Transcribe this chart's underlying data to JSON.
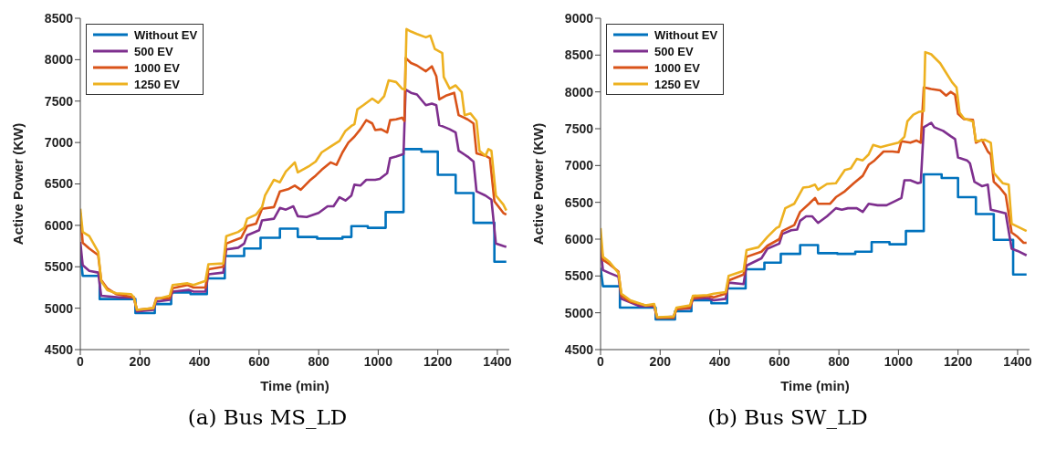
{
  "chart_data": [
    {
      "type": "line",
      "title": "(a) Bus MS_LD",
      "xlabel": "Time (min)",
      "ylabel": "Active Power (KW)",
      "xlim": [
        0,
        1440
      ],
      "xticks": [
        0,
        200,
        400,
        600,
        800,
        1000,
        1200,
        1400
      ],
      "ylim": [
        4500,
        8500
      ],
      "yticks": [
        4500,
        5000,
        5500,
        6000,
        6500,
        7000,
        7500,
        8000,
        8500
      ],
      "grid": false,
      "legend": "top left",
      "marker": "none",
      "line_style": "solid",
      "series": [
        {
          "name": "Without EV",
          "color": "#0072bd",
          "x": [
            0,
            8,
            65,
            65,
            185,
            185,
            250,
            250,
            305,
            305,
            370,
            370,
            425,
            425,
            485,
            485,
            550,
            550,
            605,
            605,
            670,
            670,
            730,
            730,
            795,
            795,
            880,
            880,
            910,
            910,
            965,
            965,
            1025,
            1025,
            1085,
            1085,
            1145,
            1145,
            1200,
            1200,
            1260,
            1260,
            1320,
            1320,
            1390,
            1390,
            1430
          ],
          "values": [
            5660,
            5390,
            5390,
            5110,
            5110,
            4940,
            4940,
            5050,
            5050,
            5190,
            5190,
            5170,
            5170,
            5360,
            5360,
            5630,
            5630,
            5720,
            5720,
            5850,
            5850,
            5960,
            5960,
            5860,
            5860,
            5840,
            5840,
            5860,
            5860,
            5990,
            5990,
            5970,
            5970,
            6160,
            6160,
            6920,
            6920,
            6890,
            6890,
            6610,
            6610,
            6390,
            6390,
            6030,
            6030,
            5560,
            5560
          ]
        },
        {
          "name": "500 EV",
          "color": "#7e2f8e",
          "x": [
            0,
            8,
            30,
            60,
            70,
            130,
            180,
            190,
            245,
            255,
            300,
            310,
            365,
            380,
            420,
            430,
            480,
            490,
            530,
            550,
            560,
            600,
            610,
            650,
            670,
            690,
            715,
            730,
            760,
            800,
            830,
            850,
            870,
            890,
            910,
            920,
            940,
            960,
            990,
            1005,
            1030,
            1040,
            1060,
            1085,
            1092,
            1110,
            1130,
            1160,
            1180,
            1195,
            1205,
            1220,
            1240,
            1260,
            1270,
            1300,
            1320,
            1330,
            1360,
            1380,
            1395,
            1420,
            1430
          ],
          "values": [
            5800,
            5520,
            5450,
            5430,
            5150,
            5130,
            5130,
            4960,
            4980,
            5080,
            5100,
            5200,
            5220,
            5200,
            5200,
            5410,
            5430,
            5710,
            5730,
            5780,
            5880,
            5940,
            6060,
            6080,
            6210,
            6190,
            6230,
            6110,
            6100,
            6150,
            6230,
            6230,
            6340,
            6300,
            6360,
            6490,
            6480,
            6550,
            6550,
            6560,
            6630,
            6810,
            6830,
            6860,
            7640,
            7600,
            7580,
            7450,
            7470,
            7450,
            7210,
            7190,
            7160,
            7120,
            6900,
            6830,
            6770,
            6410,
            6360,
            6310,
            5780,
            5750,
            5740
          ]
        },
        {
          "name": "1000 EV",
          "color": "#d95319",
          "x": [
            0,
            8,
            30,
            60,
            70,
            90,
            120,
            180,
            190,
            245,
            255,
            300,
            310,
            360,
            380,
            420,
            430,
            480,
            490,
            540,
            560,
            590,
            610,
            650,
            670,
            700,
            720,
            740,
            770,
            790,
            810,
            840,
            860,
            880,
            900,
            920,
            940,
            960,
            980,
            990,
            1010,
            1030,
            1040,
            1060,
            1080,
            1088,
            1092,
            1110,
            1130,
            1160,
            1180,
            1195,
            1205,
            1230,
            1255,
            1270,
            1300,
            1320,
            1330,
            1360,
            1375,
            1390,
            1420,
            1430
          ],
          "values": [
            6150,
            5790,
            5720,
            5640,
            5340,
            5240,
            5170,
            5130,
            4980,
            5000,
            5120,
            5120,
            5240,
            5280,
            5250,
            5250,
            5470,
            5500,
            5780,
            5850,
            5990,
            6020,
            6200,
            6220,
            6410,
            6440,
            6480,
            6430,
            6540,
            6600,
            6670,
            6760,
            6730,
            6880,
            7000,
            7070,
            7160,
            7270,
            7230,
            7150,
            7160,
            7120,
            7270,
            7280,
            7300,
            7260,
            8020,
            7960,
            7930,
            7860,
            7920,
            7800,
            7520,
            7570,
            7600,
            7330,
            7280,
            7230,
            6870,
            6840,
            6810,
            6290,
            6150,
            6130
          ]
        },
        {
          "name": "1250 EV",
          "color": "#edb120",
          "x": [
            0,
            8,
            30,
            60,
            70,
            90,
            120,
            170,
            180,
            190,
            245,
            255,
            300,
            310,
            360,
            380,
            420,
            430,
            480,
            490,
            530,
            550,
            560,
            590,
            610,
            620,
            650,
            670,
            690,
            720,
            730,
            770,
            790,
            810,
            840,
            870,
            890,
            910,
            920,
            930,
            950,
            980,
            1000,
            1020,
            1035,
            1060,
            1080,
            1090,
            1095,
            1110,
            1130,
            1160,
            1175,
            1190,
            1215,
            1220,
            1240,
            1260,
            1280,
            1290,
            1310,
            1330,
            1340,
            1360,
            1370,
            1380,
            1395,
            1420,
            1430
          ],
          "values": [
            6200,
            5920,
            5870,
            5680,
            5330,
            5220,
            5180,
            5170,
            5130,
            4980,
            5000,
            5110,
            5150,
            5280,
            5300,
            5280,
            5330,
            5530,
            5540,
            5870,
            5920,
            5970,
            6080,
            6130,
            6220,
            6360,
            6550,
            6520,
            6650,
            6760,
            6640,
            6720,
            6770,
            6880,
            6950,
            7020,
            7140,
            7200,
            7220,
            7400,
            7450,
            7530,
            7480,
            7560,
            7750,
            7730,
            7650,
            7640,
            8370,
            8340,
            8310,
            8270,
            8290,
            8130,
            8080,
            7790,
            7650,
            7690,
            7610,
            7330,
            7350,
            7260,
            6900,
            6840,
            6920,
            6900,
            6360,
            6250,
            6180
          ]
        }
      ]
    },
    {
      "type": "line",
      "title": "(b) Bus SW_LD",
      "xlabel": "Time (min)",
      "ylabel": "Active Power (KW)",
      "xlim": [
        0,
        1440
      ],
      "xticks": [
        0,
        200,
        400,
        600,
        800,
        1000,
        1200,
        1400
      ],
      "ylim": [
        4500,
        9000
      ],
      "yticks": [
        4500,
        5000,
        5500,
        6000,
        6500,
        7000,
        7500,
        8000,
        8500,
        9000
      ],
      "grid": false,
      "legend": "top left",
      "marker": "none",
      "line_style": "solid",
      "series": [
        {
          "name": "Without EV",
          "color": "#0072bd",
          "x": [
            0,
            8,
            65,
            65,
            185,
            185,
            250,
            250,
            305,
            305,
            372,
            372,
            425,
            425,
            487,
            487,
            550,
            550,
            605,
            605,
            670,
            670,
            730,
            730,
            795,
            795,
            855,
            855,
            910,
            910,
            970,
            970,
            1025,
            1025,
            1085,
            1085,
            1145,
            1145,
            1200,
            1200,
            1260,
            1260,
            1320,
            1320,
            1385,
            1385,
            1430
          ],
          "values": [
            5610,
            5360,
            5360,
            5070,
            5070,
            4910,
            4910,
            5020,
            5020,
            5170,
            5170,
            5130,
            5130,
            5330,
            5330,
            5590,
            5590,
            5680,
            5680,
            5800,
            5800,
            5920,
            5920,
            5810,
            5810,
            5800,
            5800,
            5830,
            5830,
            5960,
            5960,
            5930,
            5930,
            6110,
            6110,
            6880,
            6880,
            6830,
            6830,
            6570,
            6570,
            6340,
            6340,
            5990,
            5990,
            5520,
            5520
          ]
        },
        {
          "name": "500 EV",
          "color": "#7e2f8e",
          "x": [
            0,
            8,
            30,
            60,
            70,
            130,
            180,
            190,
            245,
            255,
            300,
            310,
            360,
            380,
            420,
            430,
            480,
            490,
            540,
            560,
            600,
            610,
            640,
            660,
            670,
            690,
            710,
            730,
            760,
            790,
            810,
            830,
            860,
            880,
            900,
            930,
            960,
            990,
            1010,
            1020,
            1040,
            1065,
            1075,
            1085,
            1110,
            1120,
            1150,
            1175,
            1190,
            1200,
            1230,
            1240,
            1255,
            1280,
            1300,
            1310,
            1330,
            1360,
            1380,
            1400,
            1430
          ],
          "values": [
            5870,
            5580,
            5540,
            5490,
            5190,
            5090,
            5090,
            4930,
            4950,
            5050,
            5060,
            5190,
            5200,
            5170,
            5190,
            5410,
            5390,
            5640,
            5740,
            5870,
            5940,
            6070,
            6120,
            6130,
            6250,
            6310,
            6310,
            6220,
            6310,
            6420,
            6400,
            6420,
            6420,
            6370,
            6480,
            6460,
            6460,
            6520,
            6560,
            6800,
            6800,
            6760,
            6770,
            7520,
            7580,
            7520,
            7470,
            7400,
            7360,
            7110,
            7070,
            7030,
            6780,
            6720,
            6740,
            6400,
            6380,
            6350,
            5870,
            5840,
            5780
          ]
        },
        {
          "name": "1000 EV",
          "color": "#d95319",
          "x": [
            0,
            8,
            30,
            60,
            70,
            100,
            150,
            180,
            190,
            245,
            255,
            300,
            310,
            360,
            380,
            420,
            430,
            480,
            490,
            540,
            560,
            600,
            610,
            650,
            670,
            700,
            720,
            730,
            770,
            790,
            820,
            850,
            880,
            900,
            920,
            950,
            980,
            1000,
            1010,
            1040,
            1060,
            1075,
            1085,
            1110,
            1140,
            1160,
            1175,
            1190,
            1200,
            1220,
            1250,
            1260,
            1280,
            1300,
            1310,
            1320,
            1340,
            1360,
            1380,
            1400,
            1420,
            1430
          ],
          "values": [
            5990,
            5720,
            5660,
            5560,
            5230,
            5150,
            5100,
            5100,
            4930,
            4930,
            5050,
            5070,
            5200,
            5230,
            5210,
            5260,
            5440,
            5520,
            5760,
            5830,
            5910,
            6000,
            6110,
            6190,
            6370,
            6480,
            6560,
            6480,
            6480,
            6570,
            6650,
            6760,
            6860,
            7010,
            7070,
            7190,
            7190,
            7180,
            7330,
            7310,
            7340,
            7310,
            8060,
            8040,
            8020,
            7950,
            8000,
            7960,
            7700,
            7630,
            7620,
            7310,
            7350,
            7190,
            7150,
            6780,
            6700,
            6600,
            6090,
            6030,
            5950,
            5950
          ]
        },
        {
          "name": "1250 EV",
          "color": "#edb120",
          "x": [
            0,
            8,
            30,
            60,
            70,
            100,
            150,
            180,
            190,
            245,
            255,
            300,
            310,
            360,
            380,
            420,
            430,
            480,
            490,
            530,
            560,
            590,
            600,
            620,
            650,
            680,
            700,
            720,
            730,
            760,
            790,
            820,
            840,
            860,
            880,
            900,
            915,
            940,
            960,
            1000,
            1020,
            1030,
            1050,
            1070,
            1085,
            1090,
            1110,
            1140,
            1160,
            1180,
            1195,
            1205,
            1220,
            1250,
            1260,
            1290,
            1310,
            1320,
            1350,
            1370,
            1380,
            1410,
            1430
          ],
          "values": [
            6150,
            5760,
            5690,
            5540,
            5260,
            5170,
            5100,
            5120,
            4940,
            4950,
            5070,
            5100,
            5230,
            5240,
            5260,
            5280,
            5500,
            5570,
            5850,
            5890,
            6030,
            6150,
            6170,
            6420,
            6480,
            6700,
            6710,
            6740,
            6670,
            6750,
            6760,
            6940,
            6960,
            7090,
            7070,
            7150,
            7280,
            7250,
            7270,
            7310,
            7390,
            7600,
            7690,
            7730,
            7740,
            8540,
            8510,
            8390,
            8260,
            8130,
            8060,
            7720,
            7640,
            7600,
            7330,
            7350,
            7310,
            6900,
            6760,
            6740,
            6210,
            6150,
            6110
          ]
        }
      ]
    }
  ]
}
